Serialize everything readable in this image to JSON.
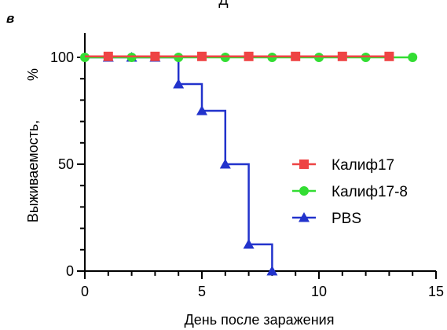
{
  "header_fragment": "Д",
  "panel_letter": "в",
  "chart_data": {
    "type": "line",
    "step": true,
    "title": "",
    "xlabel": "День после заражения",
    "ylabel": "Выживаемость,",
    "yunit": "%",
    "xlim": [
      0,
      15
    ],
    "ylim": [
      0,
      100
    ],
    "xticks": [
      0,
      5,
      10,
      15
    ],
    "yticks": [
      0,
      50,
      100
    ],
    "grid": false,
    "legend_position": "right",
    "series": [
      {
        "name": "Калиф17",
        "color": "#ee4444",
        "marker": "square",
        "x": [
          1,
          3,
          5,
          7,
          9,
          11,
          13
        ],
        "y": [
          100,
          100,
          100,
          100,
          100,
          100,
          100
        ]
      },
      {
        "name": "Калиф17-8",
        "color": "#33dd33",
        "marker": "circle",
        "x": [
          0,
          2,
          4,
          6,
          8,
          10,
          12,
          14
        ],
        "y": [
          100,
          100,
          100,
          100,
          100,
          100,
          100,
          100
        ]
      },
      {
        "name": "PBS",
        "color": "#2233cc",
        "marker": "triangle",
        "x": [
          1,
          2,
          3,
          4,
          5,
          6,
          7,
          8
        ],
        "y": [
          100,
          100,
          100,
          87.5,
          75,
          50,
          12.5,
          0
        ]
      }
    ]
  }
}
